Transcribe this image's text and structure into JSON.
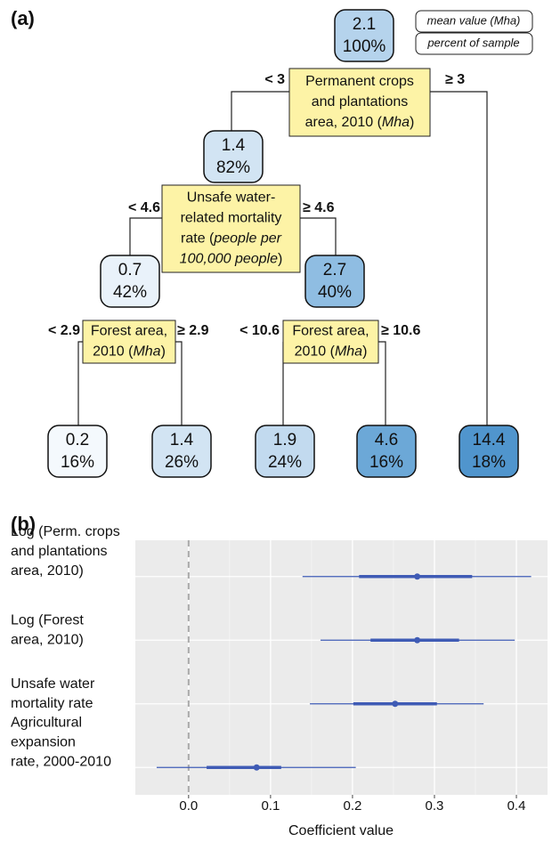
{
  "panel_a": {
    "label": "(a)",
    "legend": [
      "mean value (Mha)",
      "percent of sample"
    ],
    "nodes": [
      {
        "value": "2.1",
        "percent": "100%",
        "color": "#b5d3ec"
      },
      {
        "value": "1.4",
        "percent": "82%",
        "color": "#d2e4f3"
      },
      {
        "value": "0.7",
        "percent": "42%",
        "color": "#e9f2fa"
      },
      {
        "value": "2.7",
        "percent": "40%",
        "color": "#8fbde2"
      },
      {
        "value": "0.2",
        "percent": "16%",
        "color": "#f4f9fd"
      },
      {
        "value": "1.4",
        "percent": "26%",
        "color": "#d2e4f3"
      },
      {
        "value": "1.9",
        "percent": "24%",
        "color": "#c2daef"
      },
      {
        "value": "4.6",
        "percent": "16%",
        "color": "#6ca8d7"
      },
      {
        "value": "14.4",
        "percent": "18%",
        "color": "#5095cd"
      }
    ],
    "splits": [
      {
        "lines": [
          [
            "Permanent crops"
          ],
          [
            "and plantations"
          ],
          [
            "area, 2010 (",
            {
              "text": "Mha",
              "italic": true
            },
            ")"
          ]
        ],
        "left": "< 3",
        "right": "≥ 3"
      },
      {
        "lines": [
          [
            "Unsafe water-"
          ],
          [
            "related mortality"
          ],
          [
            "rate (",
            {
              "text": "people per",
              "italic": true
            }
          ],
          [
            {
              "text": "100,000 people",
              "italic": true
            },
            ")"
          ]
        ],
        "left": "< 4.6",
        "right": "≥ 4.6"
      },
      {
        "lines": [
          [
            "Forest area,"
          ],
          [
            "2010 (",
            {
              "text": "Mha",
              "italic": true
            },
            ")"
          ]
        ],
        "left": "< 2.9",
        "right": "≥ 2.9"
      },
      {
        "lines": [
          [
            "Forest area,"
          ],
          [
            "2010 (",
            {
              "text": "Mha",
              "italic": true
            },
            ")"
          ]
        ],
        "left": "< 10.6",
        "right": "≥ 10.6"
      }
    ]
  },
  "chart_data": {
    "type": "coefficient",
    "label": "(b)",
    "x_label": "Coefficient value",
    "categories": [
      [
        "Log (Perm. crops",
        "and plantations",
        "area, 2010)"
      ],
      [
        "Log (Forest",
        "area, 2010)"
      ],
      [
        "Unsafe water",
        "mortality rate"
      ],
      [
        "Agricultural",
        "expansion",
        "rate, 2000-2010"
      ]
    ],
    "values": [
      0.279,
      0.279,
      0.252,
      0.083
    ],
    "ci_inner": [
      [
        0.208,
        0.346
      ],
      [
        0.222,
        0.33
      ],
      [
        0.201,
        0.303
      ],
      [
        0.022,
        0.113
      ]
    ],
    "ci_outer": [
      [
        0.139,
        0.418
      ],
      [
        0.161,
        0.398
      ],
      [
        0.148,
        0.36
      ],
      [
        -0.039,
        0.204
      ]
    ],
    "color": "#3f5bb5",
    "xlim": [
      -0.065,
      0.438
    ],
    "xticks": [
      {
        "value": 0,
        "label": "0.0"
      },
      0.1,
      0.2,
      0.3,
      0.4
    ],
    "grid": true,
    "zero_line": true
  }
}
